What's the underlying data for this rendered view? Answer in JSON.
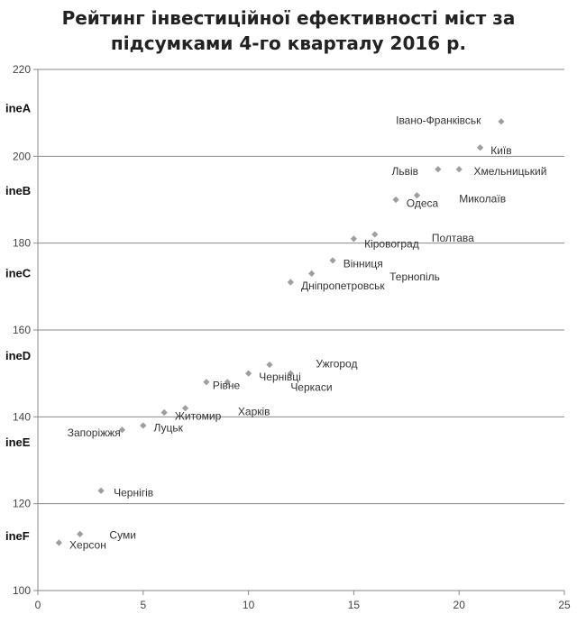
{
  "chart_data": {
    "type": "scatter",
    "title": "Рейтинг інвестиційної ефективності міст за підсумками 4-го кварталу 2016 р.",
    "title_lines": [
      "Рейтинг інвестиційної ефективності міст за",
      "підсумками 4-го кварталу 2016 р."
    ],
    "xlabel": "",
    "ylabel": "",
    "xlim": [
      0,
      25
    ],
    "ylim": [
      100,
      220
    ],
    "xticks": [
      0,
      5,
      10,
      15,
      20,
      25
    ],
    "yticks": [
      100,
      120,
      140,
      160,
      180,
      200,
      220
    ],
    "grid": "horizontal",
    "marker_color": "#9e9e9e",
    "band_labels": [
      {
        "text": "ineA",
        "y": 211
      },
      {
        "text": "ineB",
        "y": 192
      },
      {
        "text": "ineC",
        "y": 173
      },
      {
        "text": "ineD",
        "y": 154
      },
      {
        "text": "ineE",
        "y": 134
      },
      {
        "text": "ineF",
        "y": 112.5
      }
    ],
    "points": [
      {
        "x": 1,
        "y": 111,
        "label": "Херсон",
        "lx": 1.5,
        "ly": 110.5
      },
      {
        "x": 2,
        "y": 113,
        "label": "Суми",
        "lx": 3.4,
        "ly": 112.8
      },
      {
        "x": 3,
        "y": 123,
        "label": "Чернігів",
        "lx": 3.6,
        "ly": 122.5
      },
      {
        "x": 4,
        "y": 137,
        "label": "Запоріжжя",
        "lx": 1.4,
        "ly": 136.3
      },
      {
        "x": 5,
        "y": 138,
        "label": "Луцьк",
        "lx": 5.5,
        "ly": 137.5
      },
      {
        "x": 6,
        "y": 141,
        "label": "Житомир",
        "lx": 6.5,
        "ly": 140.2
      },
      {
        "x": 7,
        "y": 142,
        "label": "Харків",
        "lx": 9.5,
        "ly": 141.2
      },
      {
        "x": 8,
        "y": 148,
        "label": "Рівне",
        "lx": 8.3,
        "ly": 147.2
      },
      {
        "x": 9,
        "y": 148,
        "label": "",
        "lx": 0,
        "ly": 0
      },
      {
        "x": 10,
        "y": 150,
        "label": "Чернівці",
        "lx": 10.5,
        "ly": 149.2
      },
      {
        "x": 11,
        "y": 152,
        "label": "Ужгород",
        "lx": 13.2,
        "ly": 152.2
      },
      {
        "x": 12,
        "y": 150,
        "label": "Черкаси",
        "lx": 12.0,
        "ly": 146.8
      },
      {
        "x": 12,
        "y": 171,
        "label": "Дніпропетровськ",
        "lx": 12.5,
        "ly": 170.2
      },
      {
        "x": 13,
        "y": 173,
        "label": "Тернопіль",
        "lx": 16.7,
        "ly": 172.3
      },
      {
        "x": 14,
        "y": 176,
        "label": "Вінниця",
        "lx": 14.5,
        "ly": 175.3
      },
      {
        "x": 15,
        "y": 181,
        "label": "Кіровоград",
        "lx": 15.5,
        "ly": 179.8
      },
      {
        "x": 16,
        "y": 182,
        "label": "Полтава",
        "lx": 18.7,
        "ly": 181.2
      },
      {
        "x": 17,
        "y": 190,
        "label": "Одеса",
        "lx": 17.5,
        "ly": 189.2
      },
      {
        "x": 18,
        "y": 191,
        "label": "Миколаїв",
        "lx": 20.0,
        "ly": 190.2
      },
      {
        "x": 19,
        "y": 197,
        "label": "Львів",
        "lx": 16.8,
        "ly": 196.5
      },
      {
        "x": 20,
        "y": 197,
        "label": "Хмельницький",
        "lx": 20.7,
        "ly": 196.5
      },
      {
        "x": 21,
        "y": 202,
        "label": "Київ",
        "lx": 21.5,
        "ly": 201.3
      },
      {
        "x": 22,
        "y": 208,
        "label": "Івано-Франківськ",
        "lx": 17.0,
        "ly": 208.3
      }
    ]
  }
}
